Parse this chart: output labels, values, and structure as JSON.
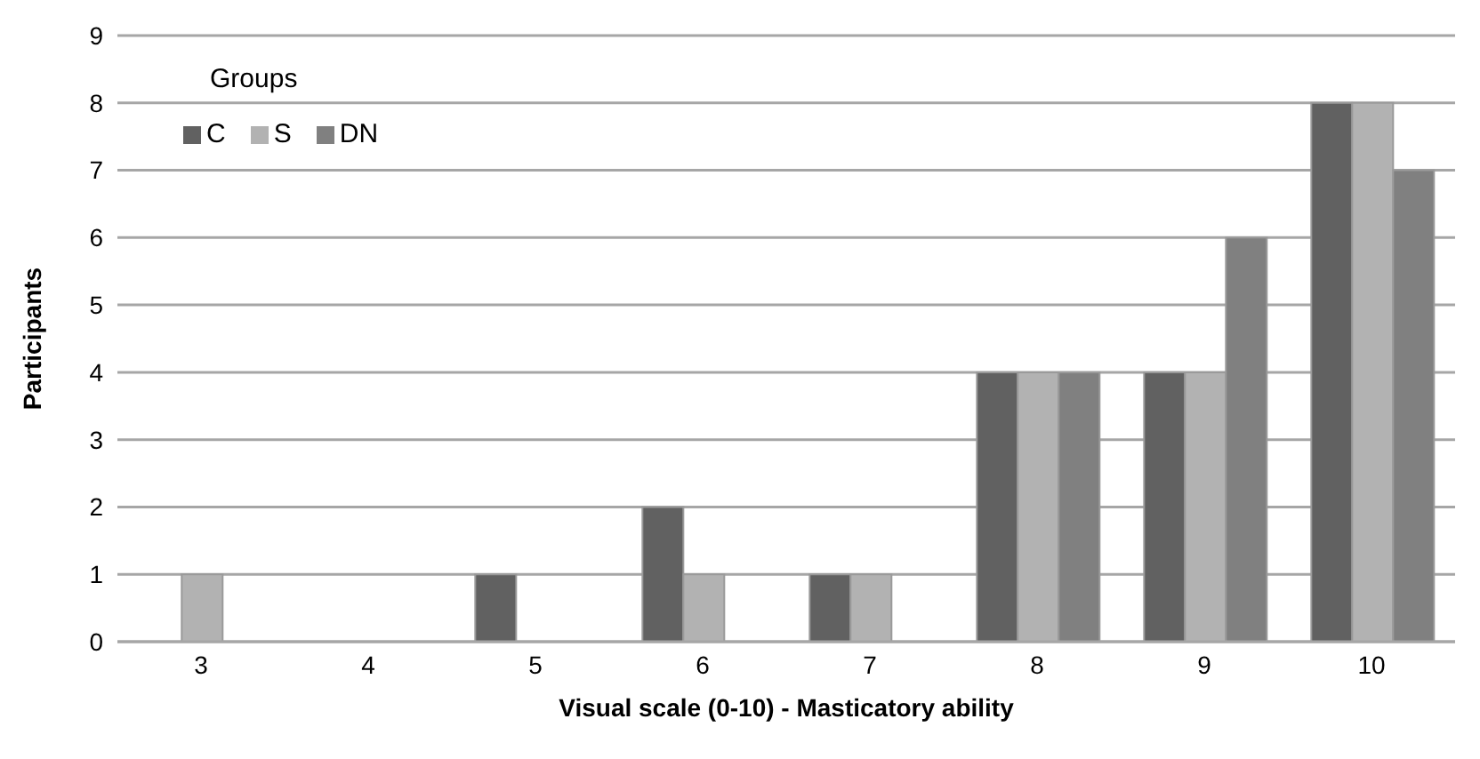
{
  "chart_data": {
    "type": "bar",
    "xlabel": "Visual scale  (0-10) - Masticatory ability",
    "ylabel": "Participants",
    "legend_title": "Groups",
    "categories": [
      "3",
      "4",
      "5",
      "6",
      "7",
      "8",
      "9",
      "10"
    ],
    "series": [
      {
        "name": "C",
        "color": "#616161",
        "values": [
          0,
          0,
          1,
          2,
          1,
          4,
          4,
          8
        ]
      },
      {
        "name": "S",
        "color": "#b2b2b2",
        "values": [
          1,
          0,
          0,
          1,
          1,
          4,
          4,
          8
        ]
      },
      {
        "name": "DN",
        "color": "#808080",
        "values": [
          0,
          0,
          0,
          0,
          0,
          4,
          6,
          7
        ]
      }
    ],
    "ylim": [
      0,
      9
    ],
    "yticks": [
      0,
      1,
      2,
      3,
      4,
      5,
      6,
      7,
      8,
      9
    ],
    "grid": "y",
    "legend": "top left"
  }
}
